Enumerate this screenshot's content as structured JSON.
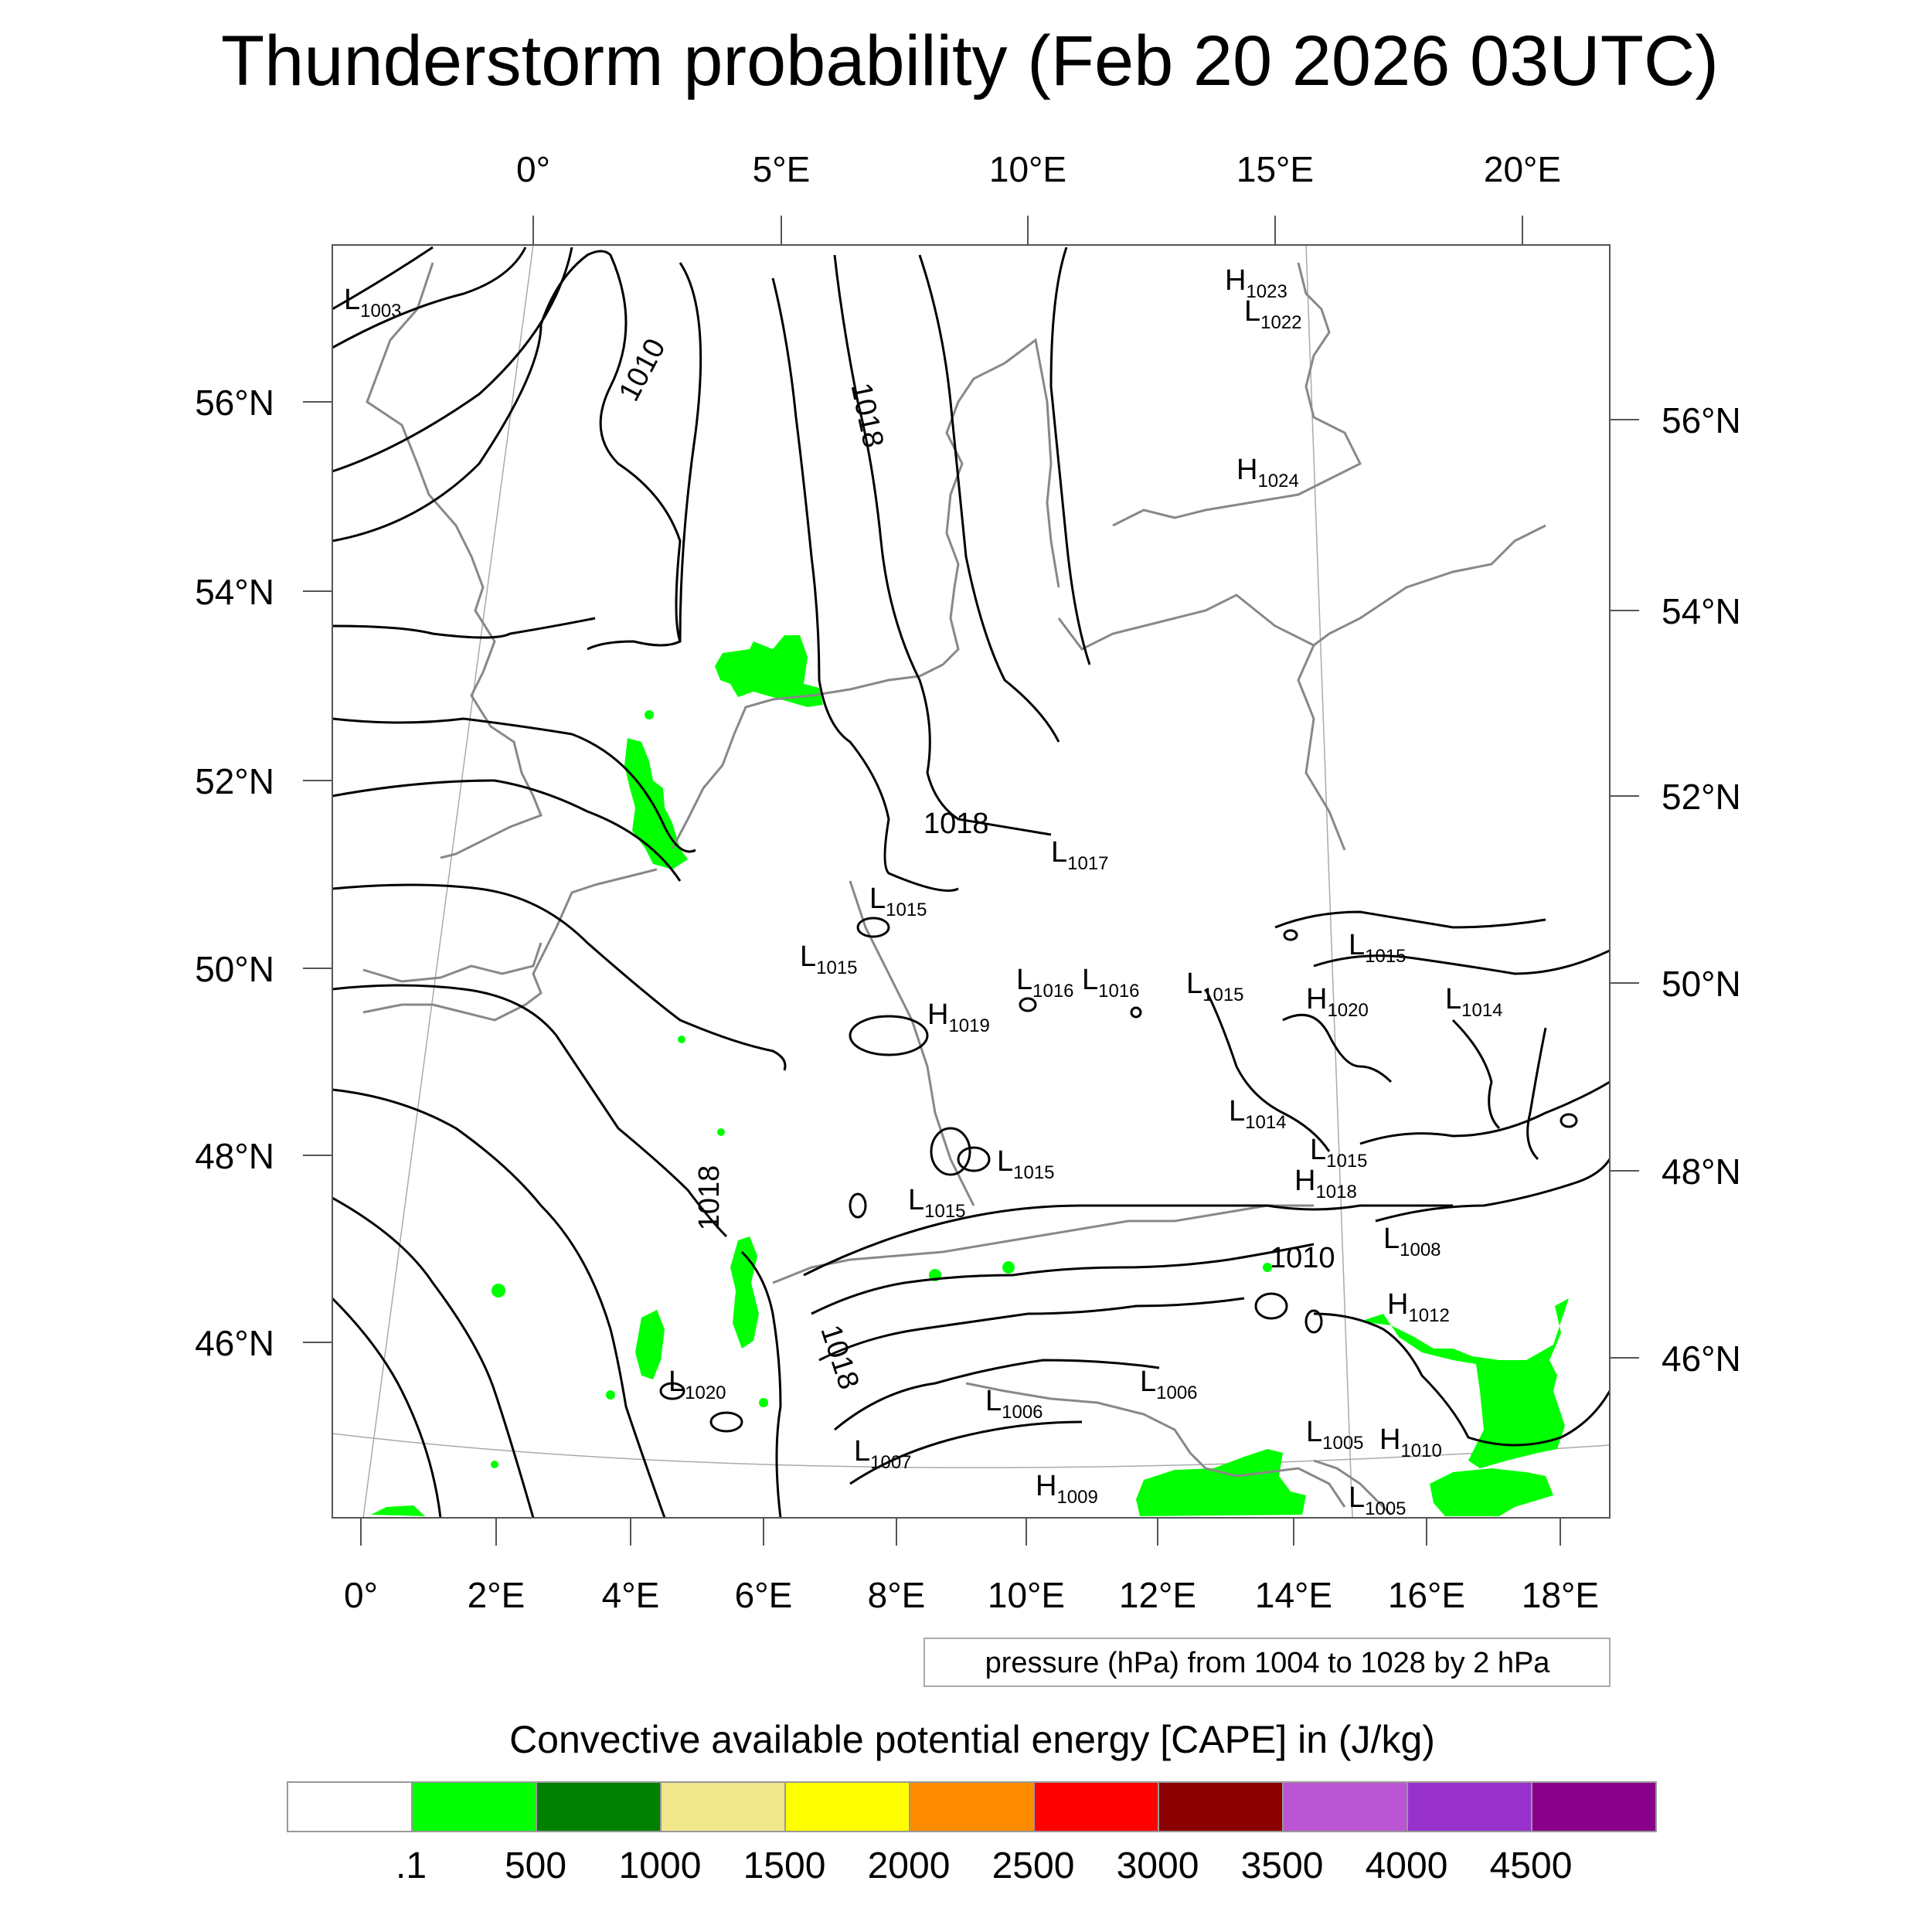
{
  "title": "Thunderstorm probability (Feb 20 2026 03UTC)",
  "top_lon_labels": [
    "0°",
    "5°E",
    "10°E",
    "15°E",
    "20°E"
  ],
  "bottom_lon_labels": [
    "0°",
    "2°E",
    "4°E",
    "6°E",
    "8°E",
    "10°E",
    "12°E",
    "14°E",
    "16°E",
    "18°E"
  ],
  "left_lat_labels": [
    "56°N",
    "54°N",
    "52°N",
    "50°N",
    "48°N",
    "46°N"
  ],
  "right_lat_labels": [
    "56°N",
    "54°N",
    "52°N",
    "50°N",
    "48°N",
    "46°N"
  ],
  "isobar_labels": [
    "1010",
    "1018",
    "1018",
    "1018",
    "1018",
    "1010"
  ],
  "pressure_centers": [
    {
      "type": "L",
      "value": "1003"
    },
    {
      "type": "H",
      "value": "1023"
    },
    {
      "type": "L",
      "value": "1022"
    },
    {
      "type": "H",
      "value": "1024"
    },
    {
      "type": "L",
      "value": "1017"
    },
    {
      "type": "L",
      "value": "1015"
    },
    {
      "type": "L",
      "value": "1015"
    },
    {
      "type": "L",
      "value": "1016"
    },
    {
      "type": "L",
      "value": "1016"
    },
    {
      "type": "L",
      "value": "1015"
    },
    {
      "type": "H",
      "value": "1020"
    },
    {
      "type": "L",
      "value": "1015"
    },
    {
      "type": "L",
      "value": "1014"
    },
    {
      "type": "H",
      "value": "1019"
    },
    {
      "type": "L",
      "value": "1014"
    },
    {
      "type": "L",
      "value": "1015"
    },
    {
      "type": "H",
      "value": "1018"
    },
    {
      "type": "L",
      "value": "1015"
    },
    {
      "type": "L",
      "value": "1015"
    },
    {
      "type": "L",
      "value": "1008"
    },
    {
      "type": "H",
      "value": "1012"
    },
    {
      "type": "L",
      "value": "1020"
    },
    {
      "type": "L",
      "value": "1006"
    },
    {
      "type": "L",
      "value": "1006"
    },
    {
      "type": "L",
      "value": "1005"
    },
    {
      "type": "H",
      "value": "1010"
    },
    {
      "type": "L",
      "value": "1007"
    },
    {
      "type": "H",
      "value": "1009"
    },
    {
      "type": "L",
      "value": "1005"
    }
  ],
  "contour_info": "pressure (hPa) from 1004 to 1028 by 2 hPa",
  "colorbar": {
    "title": "Convective available potential energy [CAPE] in (J/kg)",
    "labels": [
      ".1",
      "500",
      "1000",
      "1500",
      "2000",
      "2500",
      "3000",
      "3500",
      "4000",
      "4500"
    ],
    "colors": [
      "#ffffff",
      "#00ff00",
      "#008000",
      "#f0e68c",
      "#ffff00",
      "#ff8c00",
      "#ff0000",
      "#8b0000",
      "#ba55d3",
      "#9932cc",
      "#8b008b"
    ]
  }
}
